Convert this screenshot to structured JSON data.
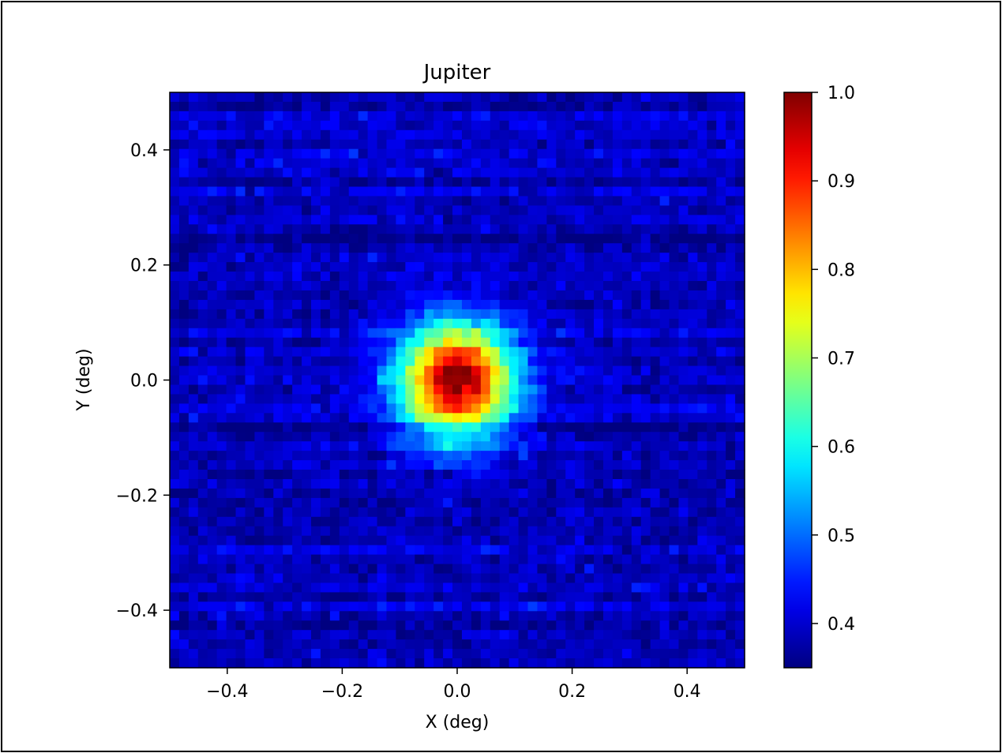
{
  "chart_data": {
    "type": "heatmap",
    "title": "Jupiter",
    "xlabel": "X (deg)",
    "ylabel": "Y (deg)",
    "xlim": [
      -0.5,
      0.5
    ],
    "ylim": [
      -0.5,
      0.5
    ],
    "x_ticks": [
      -0.4,
      -0.2,
      0.0,
      0.2,
      0.4
    ],
    "x_tick_labels": [
      "−0.4",
      "−0.2",
      "0.0",
      "0.2",
      "0.4"
    ],
    "y_ticks": [
      -0.4,
      -0.2,
      0.0,
      0.2,
      0.4
    ],
    "y_tick_labels": [
      "−0.4",
      "−0.2",
      "0.0",
      "0.2",
      "0.4"
    ],
    "colormap": "jet",
    "grid": false,
    "colorbar": {
      "range": [
        0.35,
        1.0
      ],
      "ticks": [
        0.4,
        0.5,
        0.6,
        0.7,
        0.8,
        0.9,
        1.0
      ],
      "tick_labels": [
        "0.4",
        "0.5",
        "0.6",
        "0.7",
        "0.8",
        "0.9",
        "1.0"
      ]
    },
    "grid_resolution": [
      61,
      61
    ],
    "peak": {
      "x": 0.0,
      "y": 0.0,
      "value": 1.0
    },
    "beam_gaussian_sigma_deg": 0.068,
    "background_mean": 0.39,
    "background_noise": 0.02
  }
}
